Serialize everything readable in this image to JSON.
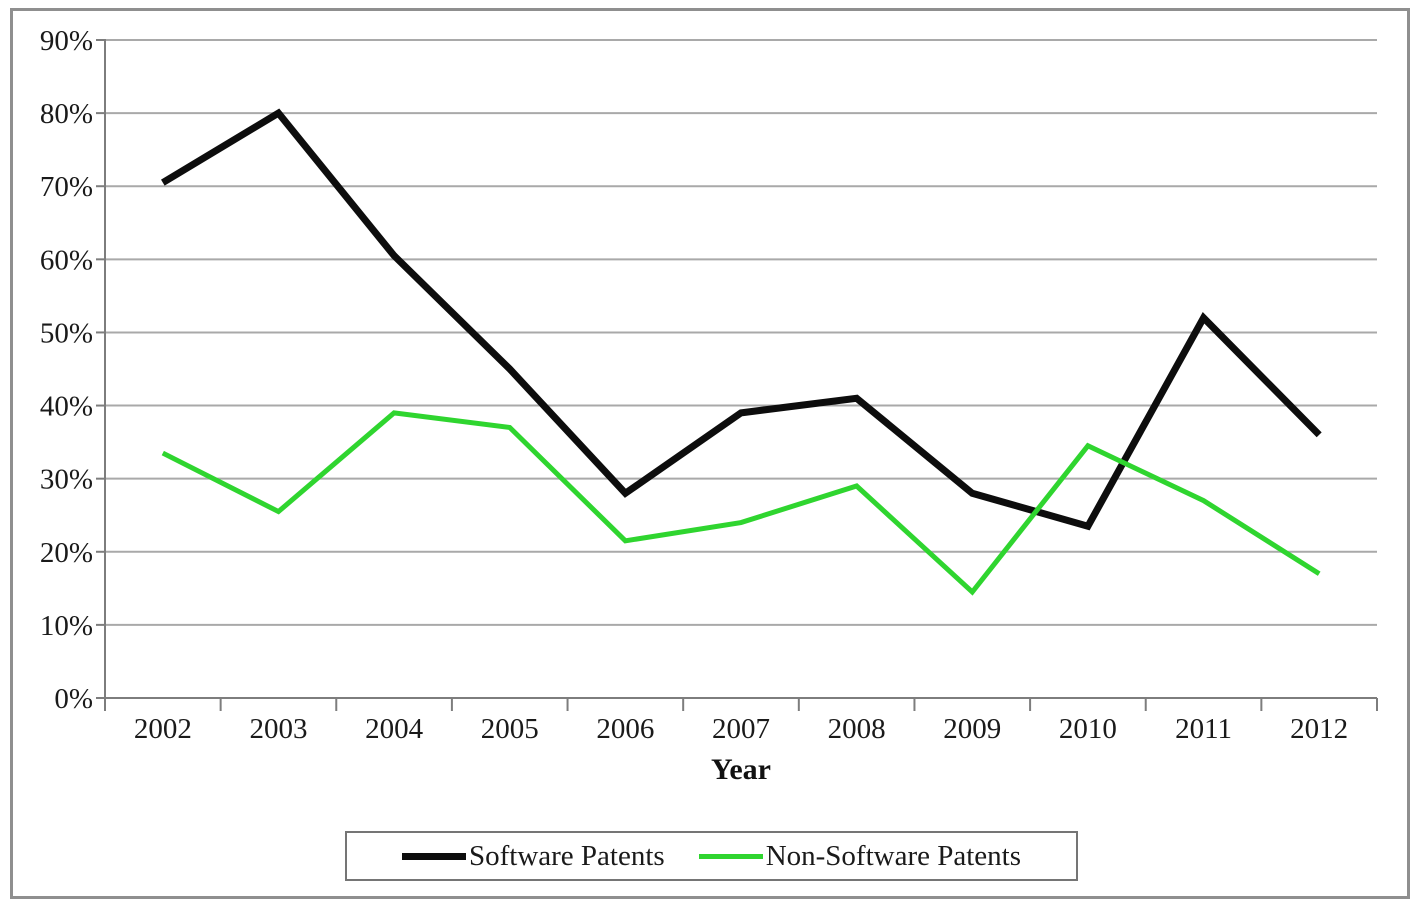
{
  "figure": {
    "border_color": "#8f8f8f",
    "background": "#ffffff"
  },
  "chart_data": {
    "type": "line",
    "title": "",
    "xlabel": "Year",
    "ylabel": "",
    "categories": [
      "2002",
      "2003",
      "2004",
      "2005",
      "2006",
      "2007",
      "2008",
      "2009",
      "2010",
      "2011",
      "2012"
    ],
    "series": [
      {
        "name": "Software Patents",
        "color": "#0d0d0d",
        "values": [
          70.5,
          80,
          60.5,
          45,
          28,
          39,
          41,
          28,
          23.5,
          52,
          36
        ]
      },
      {
        "name": "Non-Software Patents",
        "color": "#2fd52f",
        "values": [
          33.5,
          25.5,
          39,
          37,
          21.5,
          24,
          29,
          14.5,
          34.5,
          27,
          17
        ]
      }
    ],
    "ylim": [
      0,
      90
    ],
    "ytick_step": 10,
    "ytick_labels": [
      "0%",
      "10%",
      "20%",
      "30%",
      "40%",
      "50%",
      "60%",
      "70%",
      "80%",
      "90%"
    ],
    "grid": true,
    "gridline_color": "#a9a9a9",
    "axis_color": "#7d7d7d",
    "legend_position": "bottom"
  }
}
